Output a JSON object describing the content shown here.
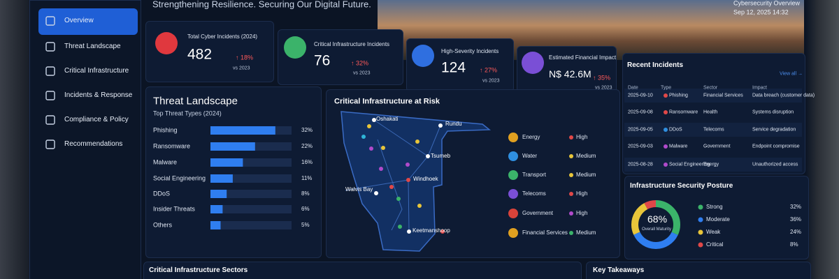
{
  "header": {
    "tagline": "Strengthening Resilience. Securing Our Digital Future.",
    "top_right_title": "Cybersecurity Overview",
    "timestamp": "Sep 12, 2025   14:32"
  },
  "nav": [
    "Overview",
    "Threat Landscape",
    "Critical Infrastructure",
    "Incidents & Response",
    "Compliance & Policy",
    "Recommendations"
  ],
  "kpis": [
    {
      "label": "Total Cyber Incidents (2024)",
      "value": "482",
      "change": "↑ 18%",
      "compare": "vs 2023",
      "color": "#e0383e"
    },
    {
      "label": "Critical Infrastructure Incidents",
      "value": "76",
      "change": "↑ 32%",
      "compare": "vs 2023",
      "color": "#3bb36a"
    },
    {
      "label": "High-Severity Incidents",
      "value": "124",
      "change": "↑ 27%",
      "compare": "vs 2023",
      "color": "#2f6fe0"
    },
    {
      "label": "Estimated Financial Impact",
      "value": "N$ 42.6M",
      "change": "↑ 35%",
      "compare": "vs 2023",
      "color": "#7a4fd6"
    }
  ],
  "threat_landscape": {
    "title": "Threat Landscape",
    "subtitle": "Top Threat Types (2024)",
    "chart": {
      "type": "bar",
      "categories": [
        "Phishing",
        "Ransomware",
        "Malware",
        "Social Engineering",
        "DDoS",
        "Insider Threats",
        "Others"
      ],
      "values": [
        32,
        22,
        16,
        11,
        8,
        6,
        5
      ],
      "value_labels": [
        "32%",
        "22%",
        "16%",
        "11%",
        "8%",
        "6%",
        "5%"
      ],
      "xlim": [
        0,
        40
      ],
      "color": "#2f7ef0"
    }
  },
  "map": {
    "title": "Critical Infrastructure at Risk",
    "cities": [
      "Oshakati",
      "Rundu",
      "Tsumeb",
      "Windhoek",
      "Walvis Bay",
      "Keetmanshoop"
    ],
    "sectors": [
      {
        "name": "Energy",
        "risk": "High",
        "icon_color": "#e0a020",
        "risk_color": "#e04848"
      },
      {
        "name": "Water",
        "risk": "Medium",
        "icon_color": "#2f8fe0",
        "risk_color": "#e8c53a"
      },
      {
        "name": "Transport",
        "risk": "Medium",
        "icon_color": "#3bb36a",
        "risk_color": "#e8c53a"
      },
      {
        "name": "Telecoms",
        "risk": "High",
        "icon_color": "#7a4fd6",
        "risk_color": "#e04848"
      },
      {
        "name": "Government",
        "risk": "High",
        "icon_color": "#d8433a",
        "risk_color": "#b04acb"
      },
      {
        "name": "Financial Services",
        "risk": "Medium",
        "icon_color": "#e0a020",
        "risk_color": "#3bb36a"
      }
    ]
  },
  "recent_incidents": {
    "title": "Recent Incidents",
    "view_all": "View all →",
    "columns": [
      "Date",
      "Type",
      "Sector",
      "Impact"
    ],
    "rows": [
      [
        "2025-09-10",
        "Phishing",
        "Financial Services",
        "Data breach (customer data)"
      ],
      [
        "2025-09-08",
        "Ransomware",
        "Health",
        "Systems disruption"
      ],
      [
        "2025-09-05",
        "DDoS",
        "Telecoms",
        "Service degradation"
      ],
      [
        "2025-09-03",
        "Malware",
        "Government",
        "Endpoint compromise"
      ],
      [
        "2025-08-28",
        "Social Engineering",
        "Energy",
        "Unauthorized access"
      ]
    ],
    "type_colors": [
      "#e04848",
      "#e04848",
      "#2f8fe0",
      "#b04acb",
      "#b04acb"
    ]
  },
  "posture": {
    "title": "Infrastructure Security Posture",
    "center_value": "68%",
    "center_label": "Overall Maturity",
    "chart": {
      "type": "donut",
      "categories": [
        "Strong",
        "Moderate",
        "Weak",
        "Critical"
      ],
      "values": [
        32,
        36,
        24,
        8
      ],
      "value_labels": [
        "32%",
        "36%",
        "24%",
        "8%"
      ],
      "colors": [
        "#3bb36a",
        "#2f7ef0",
        "#e8c53a",
        "#e04848"
      ]
    }
  },
  "bottom": {
    "sectors_title": "Critical Infrastructure Sectors",
    "takeaways_title": "Key Takeaways"
  }
}
